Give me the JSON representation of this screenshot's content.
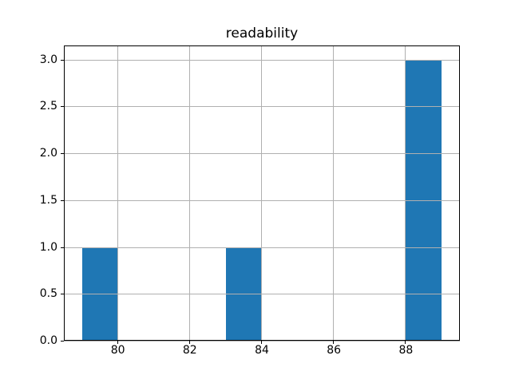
{
  "chart_data": {
    "type": "bar",
    "subtype": "histogram",
    "title": "readability",
    "bars": [
      {
        "x_start": 79,
        "x_end": 80,
        "count": 1
      },
      {
        "x_start": 83,
        "x_end": 84,
        "count": 1
      },
      {
        "x_start": 88,
        "x_end": 89,
        "count": 3
      }
    ],
    "x_tick_values": [
      80,
      82,
      84,
      86,
      88
    ],
    "x_tick_labels": [
      "80",
      "82",
      "84",
      "86",
      "88"
    ],
    "y_tick_values": [
      0.0,
      0.5,
      1.0,
      1.5,
      2.0,
      2.5,
      3.0
    ],
    "y_tick_labels": [
      "0.0",
      "0.5",
      "1.0",
      "1.5",
      "2.0",
      "2.5",
      "3.0"
    ],
    "xlim": [
      78.5,
      89.5
    ],
    "ylim": [
      0,
      3.15
    ],
    "xlabel": "",
    "ylabel": "",
    "grid": true,
    "grid_over_bars": true,
    "legend": false,
    "colors": {
      "bar": "#1f77b4",
      "grid": "#b0b0b0",
      "spine": "#000000",
      "text": "#000000",
      "background": "#ffffff"
    }
  }
}
